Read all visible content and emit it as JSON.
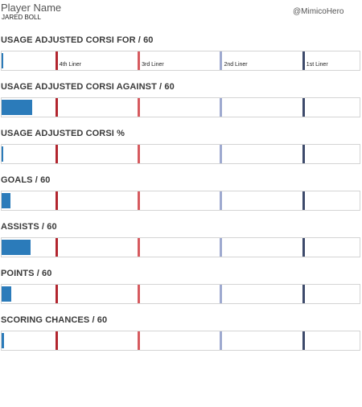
{
  "header": {
    "title": "Player Name",
    "player": "JARED BOLL",
    "handle": "@MimicoHero"
  },
  "colors": {
    "bar": "#2b7bba",
    "tier_1st": "#3d4a6b",
    "tier_2nd": "#9ea9cf",
    "tier_3rd": "#d65a5f",
    "tier_4th": "#b2262f"
  },
  "chart_data": {
    "type": "bar",
    "scale": [
      0,
      100
    ],
    "tiers": [
      {
        "label": "4th Liner",
        "value": 15
      },
      {
        "label": "3rd Liner",
        "value": 38
      },
      {
        "label": "2nd Liner",
        "value": 61
      },
      {
        "label": "1st Liner",
        "value": 84
      }
    ],
    "panels": [
      {
        "title": "USAGE ADJUSTED CORSI FOR / 60",
        "value": 0.5
      },
      {
        "title": "USAGE ADJUSTED CORSI AGAINST / 60",
        "value": 8.5
      },
      {
        "title": "USAGE ADJUSTED CORSI %",
        "value": 0.5
      },
      {
        "title": "GOALS / 60",
        "value": 2.5
      },
      {
        "title": "ASSISTS / 60",
        "value": 8
      },
      {
        "title": "POINTS / 60",
        "value": 2.7
      },
      {
        "title": "SCORING CHANCES / 60",
        "value": 0.7
      }
    ]
  }
}
